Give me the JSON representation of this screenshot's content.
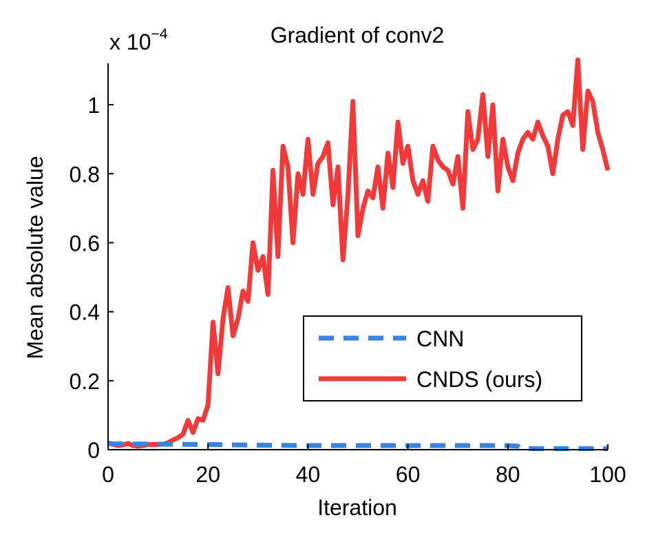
{
  "chart_data": {
    "type": "line",
    "title": "Gradient of conv2",
    "xlabel": "Iteration",
    "ylabel": "Mean absolute value",
    "y_multiplier": {
      "base": "x 10",
      "exponent": "−4"
    },
    "xlim": [
      0,
      100
    ],
    "ylim": [
      0,
      1.12
    ],
    "x_ticks": [
      0,
      20,
      40,
      60,
      80,
      100
    ],
    "x_tick_labels": [
      "0",
      "20",
      "40",
      "60",
      "80",
      "100"
    ],
    "y_ticks": [
      0,
      0.2,
      0.4,
      0.6,
      0.8,
      1
    ],
    "y_tick_labels": [
      "0",
      "0.2",
      "0.4",
      "0.6",
      "0.8",
      "1"
    ],
    "grid": false,
    "legend_position": "lower-right",
    "series": [
      {
        "name": "CNN",
        "color": "#3a83e0",
        "style": "dashed",
        "x": [
          0,
          10,
          20,
          30,
          40,
          50,
          60,
          70,
          80,
          82,
          83,
          85,
          90,
          95,
          100
        ],
        "y": [
          0.017,
          0.016,
          0.015,
          0.013,
          0.012,
          0.012,
          0.012,
          0.012,
          0.012,
          0.01,
          0.004,
          0.003,
          0.003,
          0.003,
          0.003
        ]
      },
      {
        "name": "CNDS (ours)",
        "color": "#f23a3a",
        "style": "solid",
        "x": [
          0,
          1,
          2,
          3,
          4,
          5,
          6,
          7,
          8,
          9,
          10,
          11,
          12,
          13,
          14,
          15,
          16,
          17,
          18,
          19,
          20,
          21,
          22,
          23,
          24,
          25,
          26,
          27,
          28,
          29,
          30,
          31,
          32,
          33,
          34,
          35,
          36,
          37,
          38,
          39,
          40,
          41,
          42,
          43,
          44,
          45,
          46,
          47,
          48,
          49,
          50,
          51,
          52,
          53,
          54,
          55,
          56,
          57,
          58,
          59,
          60,
          61,
          62,
          63,
          64,
          65,
          66,
          67,
          68,
          69,
          70,
          71,
          72,
          73,
          74,
          75,
          76,
          77,
          78,
          79,
          80,
          81,
          82,
          83,
          84,
          85,
          86,
          87,
          88,
          89,
          90,
          91,
          92,
          93,
          94,
          95,
          96,
          97,
          98,
          99,
          100
        ],
        "y": [
          0.02,
          0.015,
          0.012,
          0.014,
          0.018,
          0.012,
          0.01,
          0.012,
          0.015,
          0.015,
          0.015,
          0.016,
          0.02,
          0.028,
          0.035,
          0.045,
          0.085,
          0.05,
          0.09,
          0.085,
          0.13,
          0.37,
          0.22,
          0.38,
          0.47,
          0.33,
          0.38,
          0.46,
          0.43,
          0.6,
          0.52,
          0.56,
          0.45,
          0.81,
          0.56,
          0.88,
          0.82,
          0.6,
          0.8,
          0.74,
          0.9,
          0.74,
          0.83,
          0.85,
          0.89,
          0.71,
          0.82,
          0.55,
          0.74,
          1.01,
          0.62,
          0.7,
          0.75,
          0.73,
          0.82,
          0.7,
          0.86,
          0.76,
          0.95,
          0.83,
          0.88,
          0.78,
          0.74,
          0.78,
          0.72,
          0.88,
          0.84,
          0.82,
          0.81,
          0.77,
          0.85,
          0.7,
          0.98,
          0.87,
          0.9,
          1.03,
          0.85,
          1.0,
          0.75,
          0.9,
          0.82,
          0.78,
          0.86,
          0.9,
          0.92,
          0.9,
          0.95,
          0.91,
          0.88,
          0.8,
          0.9,
          0.97,
          0.98,
          0.94,
          1.13,
          0.87,
          1.04,
          1.01,
          0.92,
          0.87,
          0.81
        ]
      }
    ]
  }
}
